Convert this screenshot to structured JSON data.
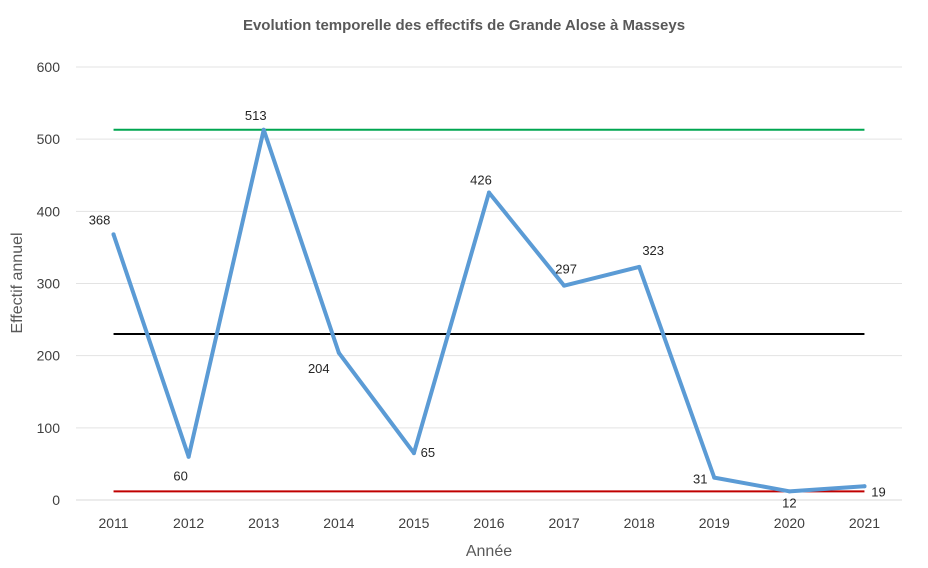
{
  "chart_data": {
    "type": "line",
    "title": "Evolution temporelle des effectifs de Grande Alose à Masseys",
    "xlabel": "Année",
    "ylabel": "Effectif annuel",
    "categories": [
      "2011",
      "2012",
      "2013",
      "2014",
      "2015",
      "2016",
      "2017",
      "2018",
      "2019",
      "2020",
      "2021"
    ],
    "series": [
      {
        "values": [
          368,
          60,
          513,
          204,
          65,
          426,
          297,
          323,
          31,
          12,
          19
        ],
        "color": "#5b9bd5",
        "data_labels": true
      }
    ],
    "reference_lines": [
      {
        "value": 513,
        "color": "#00a650"
      },
      {
        "value": 230,
        "color": "#000000"
      },
      {
        "value": 12,
        "color": "#c00000"
      }
    ],
    "ylim": [
      0,
      600
    ],
    "yticks": [
      0,
      100,
      200,
      300,
      400,
      500,
      600
    ],
    "grid": true,
    "legend": "none"
  }
}
